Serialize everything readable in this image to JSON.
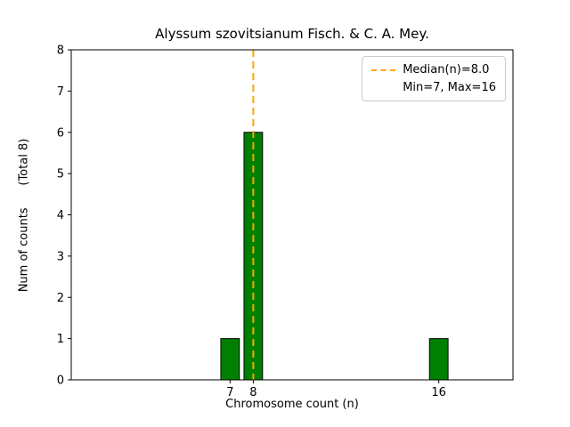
{
  "chart_data": {
    "type": "bar",
    "title": "Alyssum szovitsianum Fisch. & C. A. Mey.",
    "xlabel": "Chromosome count (n)",
    "ylabel": "Num of counts      (Total 8)",
    "x": [
      7,
      8,
      16
    ],
    "counts": [
      1,
      6,
      1
    ],
    "total_counts": 8,
    "median": 8.0,
    "min": 7,
    "max": 16,
    "xlim": [
      0.15,
      19.2
    ],
    "ylim": [
      0,
      8
    ],
    "xticks": [
      7,
      8,
      16
    ],
    "yticks": [
      0,
      1,
      2,
      3,
      4,
      5,
      6,
      7,
      8
    ],
    "bar_width": 0.8,
    "bar_color": "#008000",
    "bar_edge_color": "#000000",
    "median_line_color": "#ffa500",
    "axes_color": "#000000",
    "grid": false,
    "legend": {
      "position": "upper right",
      "entries": [
        {
          "symbol": "dashed-line",
          "label": "Median(n)=8.0"
        },
        {
          "symbol": "none",
          "label": "Min=7, Max=16"
        }
      ]
    }
  }
}
